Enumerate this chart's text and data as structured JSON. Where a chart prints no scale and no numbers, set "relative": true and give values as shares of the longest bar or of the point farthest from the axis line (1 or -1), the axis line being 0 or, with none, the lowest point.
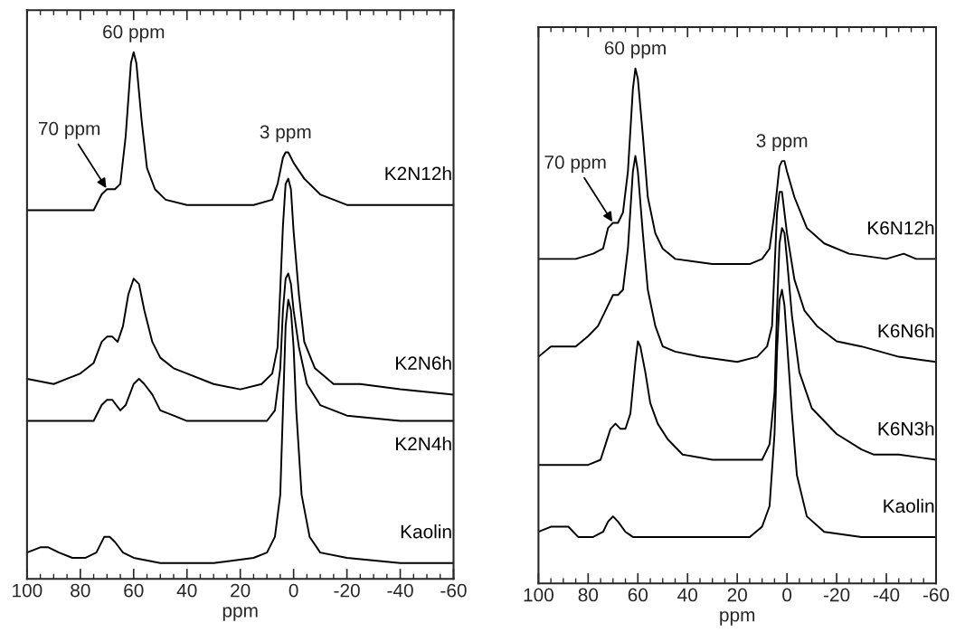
{
  "chart_data": [
    {
      "type": "line",
      "relative": true,
      "xlabel": "ppm",
      "xlim": [
        100,
        -60
      ],
      "xticks": [
        100,
        80,
        60,
        40,
        20,
        0,
        -20,
        -40,
        -60
      ],
      "grid": false,
      "legend": false,
      "line_style": "solid",
      "marker": "none",
      "annotations": [
        {
          "text": "60 ppm",
          "x": 60,
          "y": 1.0
        },
        {
          "text": "3 ppm",
          "x": 3,
          "y": 0.81
        },
        {
          "text": "70 ppm",
          "x": 70,
          "y": 0.74
        }
      ],
      "series": [
        {
          "name": "K2N12h",
          "color": "#000000",
          "x": [
            100,
            80,
            75,
            72,
            70,
            67,
            65,
            63,
            61,
            60,
            59,
            57,
            55,
            52,
            48,
            40,
            30,
            15,
            8,
            6,
            4,
            3,
            2,
            0,
            -4,
            -10,
            -20,
            -30,
            -45,
            -48,
            -52,
            -60
          ],
          "values": [
            0.7,
            0.7,
            0.7,
            0.73,
            0.74,
            0.74,
            0.75,
            0.84,
            0.98,
            1.0,
            0.98,
            0.87,
            0.78,
            0.74,
            0.72,
            0.71,
            0.71,
            0.71,
            0.72,
            0.75,
            0.8,
            0.81,
            0.81,
            0.79,
            0.76,
            0.73,
            0.71,
            0.71,
            0.71,
            0.71,
            0.71,
            0.71
          ]
        },
        {
          "name": "K2N6h",
          "color": "#000000",
          "x": [
            100,
            90,
            85,
            80,
            75,
            72,
            70,
            68,
            66,
            64,
            62,
            60,
            58,
            56,
            53,
            50,
            45,
            40,
            30,
            20,
            12,
            8,
            6,
            5,
            4,
            3,
            2,
            1,
            0,
            -2,
            -4,
            -8,
            -15,
            -25,
            -40,
            -60
          ],
          "values": [
            0.38,
            0.37,
            0.38,
            0.39,
            0.41,
            0.45,
            0.46,
            0.46,
            0.45,
            0.48,
            0.54,
            0.57,
            0.56,
            0.51,
            0.45,
            0.42,
            0.4,
            0.39,
            0.37,
            0.36,
            0.37,
            0.39,
            0.44,
            0.55,
            0.67,
            0.75,
            0.76,
            0.74,
            0.66,
            0.54,
            0.45,
            0.4,
            0.37,
            0.37,
            0.36,
            0.35
          ]
        },
        {
          "name": "K2N4h",
          "color": "#000000",
          "x": [
            100,
            80,
            75,
            72,
            70,
            68,
            65,
            63,
            60,
            58,
            56,
            53,
            50,
            45,
            40,
            20,
            10,
            7,
            5,
            4,
            3,
            2,
            1,
            0,
            -2,
            -5,
            -10,
            -20,
            -40,
            -60
          ],
          "values": [
            0.3,
            0.3,
            0.3,
            0.33,
            0.34,
            0.34,
            0.32,
            0.33,
            0.37,
            0.38,
            0.37,
            0.35,
            0.32,
            0.31,
            0.3,
            0.3,
            0.3,
            0.32,
            0.4,
            0.51,
            0.57,
            0.58,
            0.56,
            0.51,
            0.44,
            0.37,
            0.33,
            0.31,
            0.3,
            0.3
          ]
        },
        {
          "name": "Kaolin",
          "color": "#000000",
          "x": [
            100,
            95,
            92,
            88,
            83,
            78,
            74,
            71,
            69,
            67,
            64,
            60,
            50,
            30,
            15,
            10,
            7,
            5,
            4,
            3,
            2,
            1,
            0,
            -1,
            -3,
            -6,
            -10,
            -20,
            -40,
            -60
          ],
          "values": [
            0.05,
            0.06,
            0.06,
            0.05,
            0.04,
            0.04,
            0.05,
            0.08,
            0.08,
            0.07,
            0.05,
            0.04,
            0.03,
            0.03,
            0.04,
            0.05,
            0.08,
            0.16,
            0.32,
            0.48,
            0.53,
            0.51,
            0.44,
            0.32,
            0.16,
            0.08,
            0.05,
            0.04,
            0.03,
            0.03
          ]
        }
      ]
    },
    {
      "type": "line",
      "relative": true,
      "xlabel": "ppm",
      "xlim": [
        100,
        -60
      ],
      "xticks": [
        100,
        80,
        60,
        40,
        20,
        0,
        -20,
        -40,
        -60
      ],
      "grid": false,
      "legend": false,
      "line_style": "solid",
      "marker": "none",
      "annotations": [
        {
          "text": "60 ppm",
          "x": 61,
          "y": 1.0
        },
        {
          "text": "3 ppm",
          "x": 2,
          "y": 0.82
        },
        {
          "text": "70 ppm",
          "x": 70,
          "y": 0.7
        }
      ],
      "series": [
        {
          "name": "K6N12h",
          "color": "#000000",
          "x": [
            100,
            85,
            78,
            74,
            72,
            70,
            68,
            66,
            64,
            62,
            61,
            60,
            58,
            56,
            53,
            50,
            45,
            30,
            15,
            10,
            7,
            5,
            3,
            2,
            1,
            0,
            -3,
            -8,
            -15,
            -25,
            -40,
            -47,
            -52,
            -60
          ],
          "values": [
            0.63,
            0.63,
            0.64,
            0.65,
            0.69,
            0.7,
            0.7,
            0.72,
            0.8,
            0.96,
            1.0,
            0.98,
            0.87,
            0.75,
            0.68,
            0.65,
            0.63,
            0.62,
            0.62,
            0.63,
            0.65,
            0.72,
            0.81,
            0.82,
            0.82,
            0.8,
            0.75,
            0.69,
            0.66,
            0.64,
            0.63,
            0.64,
            0.63,
            0.63
          ]
        },
        {
          "name": "K6N6h",
          "color": "#000000",
          "x": [
            100,
            95,
            90,
            85,
            80,
            76,
            73,
            70,
            68,
            66,
            64,
            62,
            61,
            60,
            58,
            56,
            53,
            50,
            45,
            35,
            20,
            12,
            8,
            6,
            5,
            4,
            3,
            2,
            1,
            0,
            -3,
            -7,
            -12,
            -20,
            -30,
            -45,
            -60
          ],
          "values": [
            0.44,
            0.46,
            0.46,
            0.46,
            0.48,
            0.5,
            0.53,
            0.56,
            0.56,
            0.57,
            0.65,
            0.8,
            0.83,
            0.8,
            0.68,
            0.57,
            0.5,
            0.46,
            0.45,
            0.44,
            0.43,
            0.44,
            0.46,
            0.5,
            0.61,
            0.72,
            0.76,
            0.76,
            0.72,
            0.68,
            0.59,
            0.53,
            0.5,
            0.47,
            0.46,
            0.44,
            0.43
          ]
        },
        {
          "name": "K6N3h",
          "color": "#000000",
          "x": [
            100,
            80,
            75,
            73,
            71,
            69,
            67,
            65,
            63,
            61,
            60,
            59,
            57,
            55,
            52,
            48,
            42,
            30,
            15,
            10,
            7,
            5,
            4,
            3,
            2,
            1,
            0,
            -2,
            -5,
            -10,
            -20,
            -30,
            -35,
            -45,
            -60
          ],
          "values": [
            0.23,
            0.23,
            0.24,
            0.27,
            0.3,
            0.31,
            0.3,
            0.3,
            0.33,
            0.43,
            0.47,
            0.46,
            0.41,
            0.35,
            0.31,
            0.28,
            0.25,
            0.24,
            0.24,
            0.24,
            0.27,
            0.37,
            0.53,
            0.66,
            0.69,
            0.68,
            0.63,
            0.52,
            0.41,
            0.34,
            0.29,
            0.26,
            0.25,
            0.25,
            0.24
          ]
        },
        {
          "name": "Kaolin",
          "color": "#000000",
          "x": [
            100,
            95,
            92,
            88,
            84,
            78,
            74,
            72,
            70,
            68,
            65,
            62,
            50,
            30,
            15,
            10,
            7,
            5,
            4,
            3,
            2,
            1,
            0,
            -2,
            -4,
            -8,
            -15,
            -30,
            -60
          ],
          "values": [
            0.1,
            0.11,
            0.11,
            0.11,
            0.09,
            0.09,
            0.1,
            0.12,
            0.13,
            0.12,
            0.1,
            0.09,
            0.09,
            0.09,
            0.09,
            0.11,
            0.15,
            0.29,
            0.45,
            0.55,
            0.57,
            0.54,
            0.47,
            0.33,
            0.21,
            0.13,
            0.1,
            0.09,
            0.09
          ]
        }
      ]
    }
  ]
}
